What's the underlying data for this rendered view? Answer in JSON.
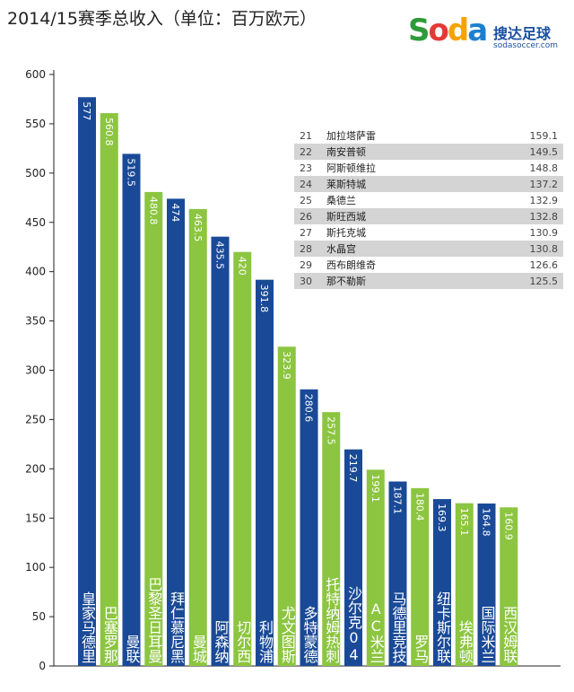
{
  "chart_data": {
    "type": "bar",
    "title": "2014/15赛季总收入（单位：百万欧元）",
    "ylim": [
      0,
      600
    ],
    "yticks": [
      0,
      50,
      100,
      150,
      200,
      250,
      300,
      350,
      400,
      450,
      500,
      550,
      600
    ],
    "categories": [
      "皇家马德里",
      "巴塞罗那",
      "曼联",
      "巴黎圣日耳曼",
      "拜仁慕尼黑",
      "曼城",
      "阿森纳",
      "切尔西",
      "利物浦",
      "尤文图斯",
      "多特蒙德",
      "托特纳姆热刺",
      "沙尔克04",
      "AC米兰",
      "马德里竞技",
      "罗马",
      "纽卡斯尔联",
      "埃弗顿",
      "国际米兰",
      "西汉姆联"
    ],
    "values": [
      577,
      560.8,
      519.5,
      480.8,
      474,
      463.5,
      435.5,
      420,
      391.8,
      323.9,
      280.6,
      257.5,
      219.7,
      199.1,
      187.1,
      180.4,
      169.3,
      165.1,
      164.8,
      160.9
    ],
    "value_labels": [
      "577",
      "560.8",
      "519.5",
      "480.8",
      "474",
      "463.5",
      "435.5",
      "420",
      "391.8",
      "323.9",
      "280.6",
      "257.5",
      "219.7",
      "199.1",
      "187.1",
      "180.4",
      "169.3",
      "165.1",
      "164.8",
      "160.9"
    ],
    "colors": [
      "#1a4a97",
      "#8cc540"
    ],
    "grid": false,
    "table": [
      {
        "rank": "21",
        "name": "加拉塔萨雷",
        "value": "159.1"
      },
      {
        "rank": "22",
        "name": "南安普顿",
        "value": "149.5"
      },
      {
        "rank": "23",
        "name": "阿斯顿维拉",
        "value": "148.8"
      },
      {
        "rank": "24",
        "name": "莱斯特城",
        "value": "137.2"
      },
      {
        "rank": "25",
        "name": "桑德兰",
        "value": "132.9"
      },
      {
        "rank": "26",
        "name": "斯旺西城",
        "value": "132.8"
      },
      {
        "rank": "27",
        "name": "斯托克城",
        "value": "130.9"
      },
      {
        "rank": "28",
        "name": "水晶宫",
        "value": "130.8"
      },
      {
        "rank": "29",
        "name": "西布朗维奇",
        "value": "126.6"
      },
      {
        "rank": "30",
        "name": "那不勒斯",
        "value": "125.5"
      }
    ]
  },
  "logo": {
    "text": "Soda",
    "cn": "搜达足球",
    "url": "sodasoccer.com"
  }
}
